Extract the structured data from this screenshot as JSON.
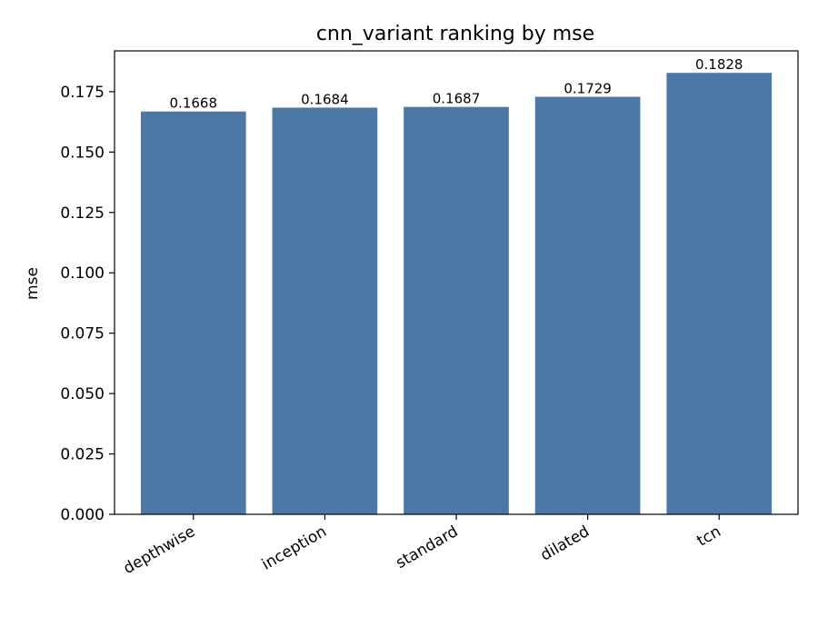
{
  "chart_data": {
    "type": "bar",
    "title": "cnn_variant ranking by mse",
    "xlabel": "",
    "ylabel": "mse",
    "categories": [
      "depthwise",
      "inception",
      "standard",
      "dilated",
      "tcn"
    ],
    "values": [
      0.1668,
      0.1684,
      0.1687,
      0.1729,
      0.1828
    ],
    "data_labels": [
      "0.1668",
      "0.1684",
      "0.1687",
      "0.1729",
      "0.1828"
    ],
    "yticks": [
      {
        "value": 0.0,
        "label": "0.000"
      },
      {
        "value": 0.025,
        "label": "0.025"
      },
      {
        "value": 0.05,
        "label": "0.050"
      },
      {
        "value": 0.075,
        "label": "0.075"
      },
      {
        "value": 0.1,
        "label": "0.100"
      },
      {
        "value": 0.125,
        "label": "0.125"
      },
      {
        "value": 0.15,
        "label": "0.150"
      },
      {
        "value": 0.175,
        "label": "0.175"
      }
    ],
    "ylim": [
      0,
      0.1919
    ],
    "grid": false,
    "legend": "none",
    "bar_color": "#4c78a8"
  }
}
